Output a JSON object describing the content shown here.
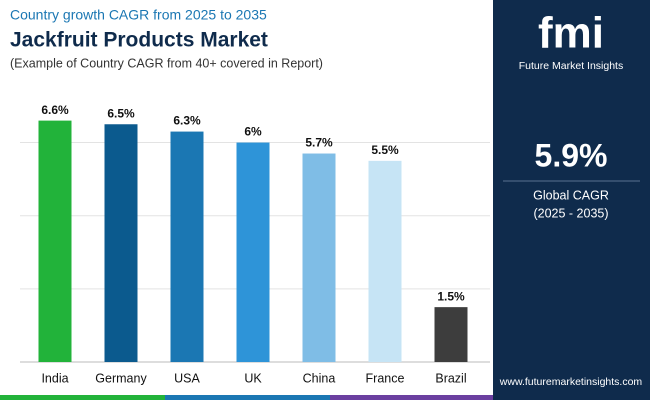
{
  "chart_data": {
    "type": "bar",
    "kicker": "Country growth CAGR from 2025 to 2035",
    "title": "Jackfruit Products Market",
    "subtitle": "(Example of Country CAGR from 40+ covered in Report)",
    "categories": [
      "India",
      "Germany",
      "USA",
      "UK",
      "China",
      "France",
      "Brazil"
    ],
    "values": [
      6.6,
      6.5,
      6.3,
      6,
      5.7,
      5.5,
      1.5
    ],
    "value_labels": [
      "6.6%",
      "6.5%",
      "6.3%",
      "6%",
      "5.7%",
      "5.5%",
      "1.5%"
    ],
    "colors": [
      "#22b33a",
      "#0b5a8e",
      "#1b77b3",
      "#2e94d8",
      "#7fbde6",
      "#c6e4f5",
      "#3d3d3d"
    ],
    "ylim": [
      0,
      7.3
    ],
    "yticks": [
      0,
      2,
      4,
      6
    ],
    "grid": true,
    "annotations": {
      "logo": "fmi",
      "brand": "Future Market Insights",
      "cagr": "5.9%",
      "cagr_label": "Global CAGR",
      "cagr_period": "(2025 - 2035)",
      "website": "www.futuremarketinsights.com"
    }
  }
}
